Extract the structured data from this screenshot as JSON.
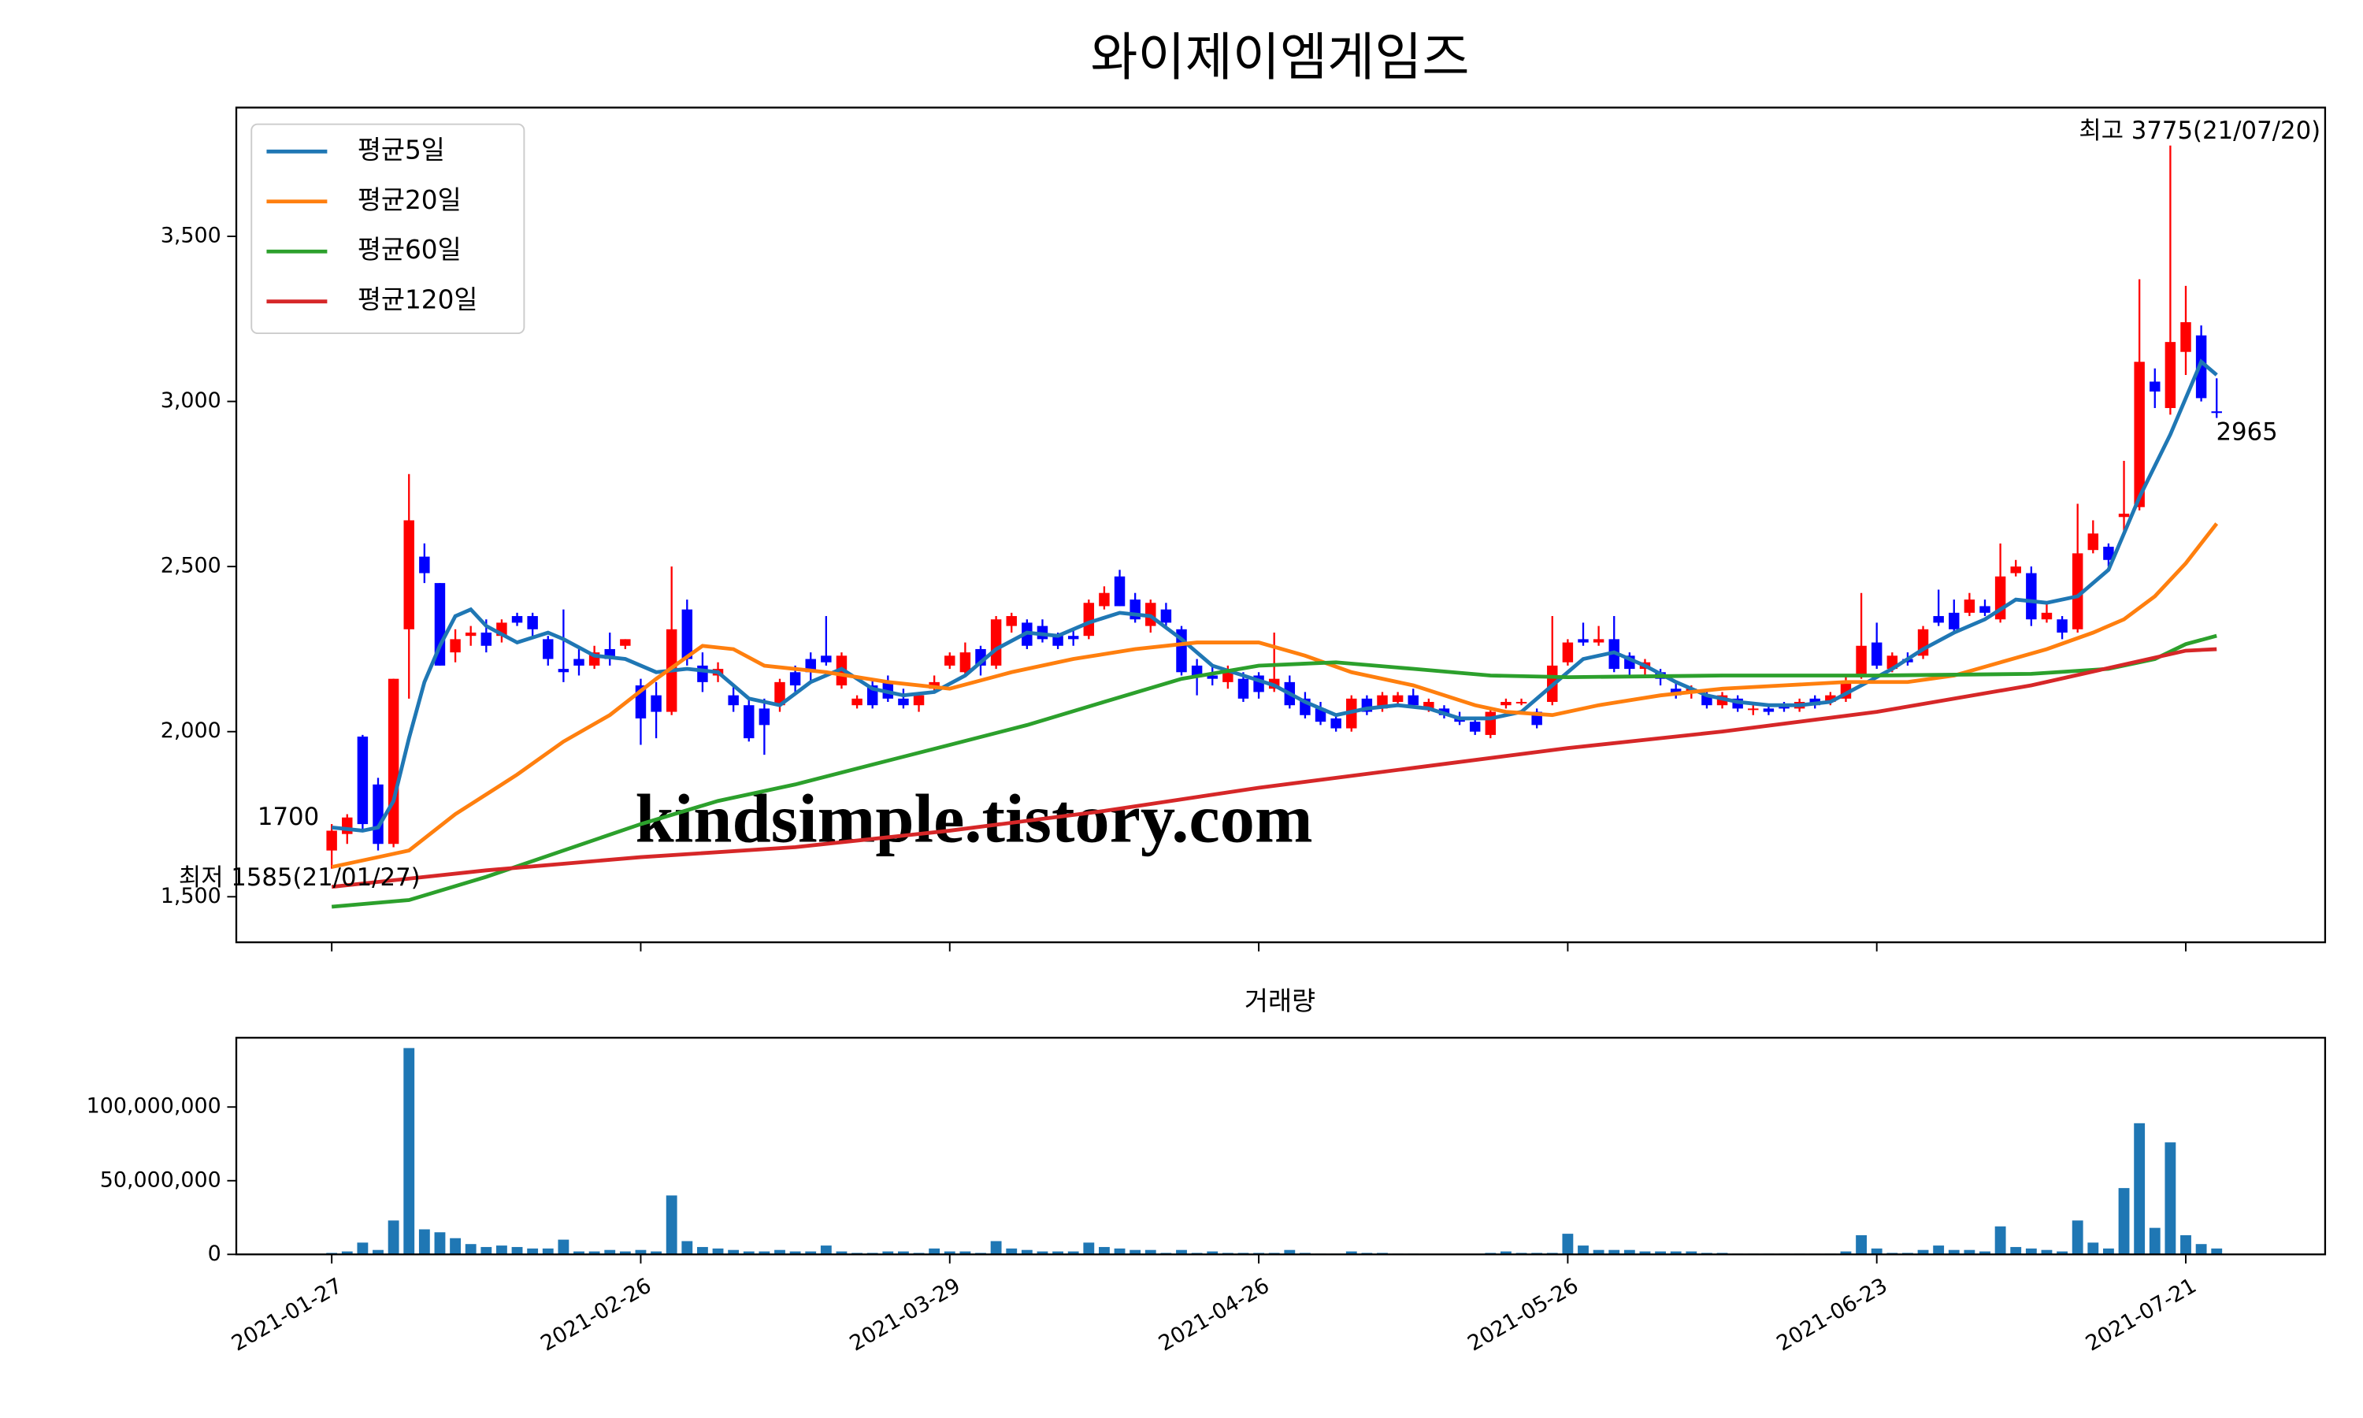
{
  "chart_data": [
    {
      "type": "candlestick",
      "title": "와이제이엠게임즈",
      "categories": [
        "2021-01-27",
        null,
        null,
        null,
        null,
        null,
        null,
        null,
        null,
        null,
        null,
        null,
        null,
        null,
        null,
        null,
        null,
        null,
        null,
        null,
        "2021-02-26",
        null,
        null,
        null,
        null,
        null,
        null,
        null,
        null,
        null,
        null,
        null,
        null,
        null,
        null,
        null,
        null,
        null,
        null,
        null,
        "2021-03-29",
        null,
        null,
        null,
        null,
        null,
        null,
        null,
        null,
        null,
        null,
        null,
        null,
        null,
        null,
        null,
        null,
        null,
        null,
        null,
        "2021-04-26",
        null,
        null,
        null,
        null,
        null,
        null,
        null,
        null,
        null,
        null,
        null,
        null,
        null,
        null,
        null,
        null,
        null,
        null,
        null,
        "2021-05-26",
        null,
        null,
        null,
        null,
        null,
        null,
        null,
        null,
        null,
        null,
        null,
        null,
        null,
        null,
        null,
        null,
        null,
        null,
        null,
        "2021-06-23",
        null,
        null,
        null,
        null,
        null,
        null,
        null,
        null,
        null,
        null,
        null,
        null,
        null,
        null,
        null,
        null,
        null,
        null,
        null,
        "2021-07-21",
        null,
        null
      ],
      "open": [
        1640,
        1690,
        1985,
        1840,
        1660,
        2310,
        2530,
        2450,
        2240,
        2290,
        2300,
        2290,
        2350,
        2350,
        2280,
        2190,
        2220,
        2200,
        2250,
        2260,
        2140,
        2110,
        2060,
        2370,
        2200,
        2170,
        2110,
        2080,
        2070,
        2080,
        2180,
        2220,
        2230,
        2140,
        2080,
        2140,
        2150,
        2100,
        2080,
        2130,
        2200,
        2180,
        2250,
        2200,
        2320,
        2330,
        2320,
        2290,
        2290,
        2290,
        2380,
        2470,
        2400,
        2320,
        2370,
        2310,
        2200,
        2170,
        2150,
        2160,
        2170,
        2130,
        2150,
        2100,
        2070,
        2040,
        2010,
        2100,
        2070,
        2090,
        2110,
        2070,
        2070,
        2040,
        2030,
        1990,
        2080,
        2090,
        2060,
        2090,
        2210,
        2280,
        2270,
        2280,
        2230,
        2190,
        2180,
        2130,
        2120,
        2110,
        2080,
        2100,
        2070,
        2070,
        2080,
        2070,
        2100,
        2090,
        2100,
        2170,
        2270,
        2190,
        2220,
        2230,
        2350,
        2360,
        2360,
        2380,
        2340,
        2480,
        2480,
        2340,
        2340,
        2310,
        2550,
        2560,
        2650,
        2680,
        3060,
        2980,
        3150,
        3200,
        2970
      ],
      "high": [
        1720,
        1750,
        1990,
        1860,
        2160,
        2780,
        2570,
        2450,
        2310,
        2320,
        2340,
        2340,
        2360,
        2360,
        2290,
        2370,
        2250,
        2260,
        2300,
        2280,
        2160,
        2150,
        2500,
        2400,
        2240,
        2210,
        2140,
        2100,
        2100,
        2160,
        2200,
        2240,
        2350,
        2240,
        2110,
        2160,
        2170,
        2130,
        2120,
        2170,
        2240,
        2270,
        2260,
        2350,
        2360,
        2340,
        2340,
        2300,
        2310,
        2400,
        2440,
        2490,
        2420,
        2400,
        2390,
        2320,
        2220,
        2200,
        2200,
        2180,
        2180,
        2300,
        2170,
        2120,
        2090,
        2050,
        2110,
        2110,
        2120,
        2120,
        2130,
        2100,
        2080,
        2060,
        2040,
        2070,
        2100,
        2100,
        2070,
        2350,
        2280,
        2330,
        2320,
        2350,
        2240,
        2220,
        2190,
        2150,
        2140,
        2120,
        2120,
        2110,
        2080,
        2080,
        2090,
        2100,
        2110,
        2120,
        2170,
        2420,
        2330,
        2240,
        2240,
        2320,
        2430,
        2400,
        2420,
        2400,
        2570,
        2520,
        2500,
        2390,
        2350,
        2690,
        2640,
        2570,
        2820,
        3370,
        3100,
        3775,
        3350,
        3230,
        3070
      ],
      "low": [
        1585,
        1660,
        1700,
        1640,
        1650,
        2100,
        2450,
        2200,
        2210,
        2260,
        2240,
        2270,
        2320,
        2290,
        2200,
        2150,
        2170,
        2190,
        2200,
        2250,
        1960,
        1980,
        2050,
        2200,
        2120,
        2150,
        2060,
        1970,
        1930,
        2060,
        2120,
        2150,
        2200,
        2130,
        2070,
        2070,
        2090,
        2070,
        2060,
        2120,
        2190,
        2170,
        2170,
        2190,
        2300,
        2250,
        2270,
        2250,
        2260,
        2280,
        2370,
        2380,
        2330,
        2300,
        2320,
        2170,
        2110,
        2140,
        2130,
        2090,
        2100,
        2120,
        2070,
        2040,
        2020,
        2000,
        2000,
        2050,
        2060,
        2080,
        2070,
        2060,
        2040,
        2020,
        1990,
        1980,
        2070,
        2080,
        2010,
        2080,
        2200,
        2260,
        2260,
        2180,
        2170,
        2170,
        2140,
        2100,
        2100,
        2070,
        2070,
        2060,
        2050,
        2050,
        2060,
        2060,
        2070,
        2080,
        2090,
        2160,
        2190,
        2180,
        2200,
        2220,
        2320,
        2300,
        2350,
        2350,
        2330,
        2470,
        2320,
        2330,
        2280,
        2300,
        2540,
        2500,
        2600,
        2670,
        2980,
        2960,
        3080,
        3000,
        2950
      ],
      "close": [
        1700,
        1740,
        1720,
        1660,
        2160,
        2640,
        2480,
        2200,
        2280,
        2300,
        2260,
        2330,
        2330,
        2310,
        2220,
        2180,
        2200,
        2240,
        2220,
        2280,
        2040,
        2060,
        2310,
        2220,
        2150,
        2190,
        2080,
        1980,
        2020,
        2150,
        2140,
        2180,
        2210,
        2230,
        2100,
        2080,
        2100,
        2080,
        2110,
        2150,
        2230,
        2240,
        2200,
        2340,
        2350,
        2260,
        2280,
        2260,
        2280,
        2390,
        2420,
        2380,
        2340,
        2390,
        2330,
        2180,
        2170,
        2160,
        2190,
        2100,
        2120,
        2160,
        2080,
        2050,
        2030,
        2010,
        2100,
        2060,
        2110,
        2110,
        2080,
        2090,
        2050,
        2030,
        2000,
        2060,
        2090,
        2090,
        2020,
        2200,
        2270,
        2270,
        2280,
        2190,
        2190,
        2210,
        2160,
        2110,
        2130,
        2080,
        2110,
        2070,
        2070,
        2060,
        2070,
        2090,
        2080,
        2110,
        2150,
        2260,
        2200,
        2230,
        2210,
        2310,
        2330,
        2310,
        2400,
        2360,
        2470,
        2500,
        2340,
        2360,
        2300,
        2540,
        2600,
        2520,
        2660,
        3120,
        3030,
        3180,
        3240,
        3010,
        2965
      ],
      "up_color": "red",
      "down_color": "blue",
      "series": [
        {
          "name": "평균5일",
          "color": "#1f77b4",
          "x": [
            0,
            2,
            3,
            4,
            5,
            6,
            7,
            8,
            9,
            10,
            12,
            14,
            15,
            17,
            19,
            21,
            23,
            25,
            27,
            29,
            31,
            33,
            35,
            37,
            39,
            41,
            43,
            45,
            47,
            49,
            51,
            53,
            55,
            57,
            59,
            61,
            63,
            65,
            67,
            69,
            71,
            73,
            75,
            77,
            79,
            81,
            83,
            85,
            87,
            89,
            91,
            93,
            95,
            97,
            99,
            101,
            103,
            105,
            107,
            109,
            111,
            113,
            115,
            117,
            119,
            121,
            122
          ],
          "values": [
            1710,
            1700,
            1710,
            1790,
            1980,
            2150,
            2260,
            2350,
            2370,
            2320,
            2270,
            2300,
            2280,
            2230,
            2220,
            2180,
            2190,
            2180,
            2100,
            2080,
            2150,
            2190,
            2130,
            2110,
            2120,
            2170,
            2250,
            2300,
            2290,
            2330,
            2360,
            2350,
            2280,
            2200,
            2170,
            2140,
            2090,
            2050,
            2070,
            2080,
            2070,
            2040,
            2040,
            2060,
            2140,
            2220,
            2240,
            2200,
            2150,
            2110,
            2090,
            2080,
            2080,
            2090,
            2140,
            2190,
            2250,
            2300,
            2340,
            2400,
            2390,
            2410,
            2490,
            2710,
            2900,
            3120,
            3080
          ]
        },
        {
          "name": "평균20일",
          "color": "#ff7f0e",
          "x": [
            0,
            3,
            5,
            8,
            10,
            12,
            15,
            18,
            21,
            24,
            26,
            28,
            32,
            36,
            40,
            44,
            48,
            52,
            56,
            60,
            63,
            66,
            70,
            74,
            76,
            79,
            82,
            86,
            90,
            94,
            98,
            102,
            105,
            108,
            111,
            114,
            116,
            118,
            120,
            122
          ],
          "values": [
            1590,
            1620,
            1640,
            1750,
            1810,
            1870,
            1970,
            2050,
            2160,
            2260,
            2250,
            2200,
            2180,
            2150,
            2130,
            2180,
            2220,
            2250,
            2270,
            2270,
            2230,
            2180,
            2140,
            2080,
            2060,
            2050,
            2080,
            2110,
            2130,
            2140,
            2150,
            2150,
            2170,
            2210,
            2250,
            2300,
            2340,
            2410,
            2510,
            2630
          ]
        },
        {
          "name": "평균60일",
          "color": "#2ca02c",
          "x": [
            0,
            5,
            10,
            15,
            20,
            25,
            30,
            35,
            40,
            45,
            50,
            55,
            60,
            65,
            70,
            75,
            80,
            90,
            100,
            110,
            115,
            118,
            120,
            122
          ],
          "values": [
            1470,
            1490,
            1560,
            1640,
            1720,
            1790,
            1840,
            1900,
            1960,
            2020,
            2090,
            2160,
            2200,
            2210,
            2190,
            2170,
            2165,
            2170,
            2170,
            2175,
            2190,
            2220,
            2265,
            2290
          ]
        },
        {
          "name": "평균120일",
          "color": "#d62728",
          "x": [
            0,
            10,
            20,
            30,
            40,
            50,
            60,
            70,
            80,
            90,
            100,
            110,
            120,
            122
          ],
          "values": [
            1530,
            1580,
            1620,
            1650,
            1700,
            1760,
            1830,
            1890,
            1950,
            2000,
            2060,
            2140,
            2245,
            2250
          ]
        }
      ],
      "annotations": [
        {
          "text": "최고 3775(21/07/20)",
          "color": "red"
        },
        {
          "text": "최저 1585(21/01/27)",
          "color": "blue"
        },
        {
          "text": "1700",
          "color": "black"
        },
        {
          "text": "2965",
          "color": "black"
        }
      ],
      "watermark": {
        "text": "kindsimple.tistory.com",
        "color": "#e2a2ef"
      },
      "ylim": [
        1362,
        3890
      ],
      "yticks": [
        {
          "value": 1500,
          "label": "1,500"
        },
        {
          "value": 2000,
          "label": "2,000"
        },
        {
          "value": 2500,
          "label": "2,500"
        },
        {
          "value": 3000,
          "label": "3,000"
        },
        {
          "value": 3500,
          "label": "3,500"
        }
      ],
      "legend": "upper left",
      "grid": false
    },
    {
      "type": "bar",
      "title": "거래량",
      "color": "#1f77b4",
      "values": [
        1000000,
        2000000,
        8000000,
        3000000,
        23000000,
        140000000,
        17000000,
        15000000,
        11000000,
        7000000,
        5000000,
        6000000,
        5000000,
        4000000,
        4000000,
        10000000,
        2000000,
        2000000,
        3000000,
        2000000,
        3000000,
        2000000,
        40000000,
        9000000,
        5000000,
        4000000,
        3000000,
        2000000,
        2000000,
        3000000,
        2000000,
        2000000,
        6000000,
        2000000,
        1000000,
        1000000,
        2000000,
        2000000,
        1000000,
        4000000,
        2000000,
        2000000,
        1000000,
        9000000,
        4000000,
        3000000,
        2000000,
        2000000,
        2000000,
        8000000,
        5000000,
        4000000,
        3000000,
        3000000,
        1000000,
        3000000,
        1000000,
        2000000,
        1000000,
        1000000,
        1000000,
        1000000,
        3000000,
        1000000,
        500000,
        500000,
        2000000,
        1000000,
        1000000,
        500000,
        500000,
        300000,
        300000,
        300000,
        300000,
        1000000,
        2000000,
        1000000,
        1000000,
        1000000,
        14000000,
        6000000,
        3000000,
        3000000,
        3000000,
        2000000,
        2000000,
        2000000,
        2000000,
        1000000,
        1000000,
        500000,
        500000,
        500000,
        500000,
        500000,
        500000,
        500000,
        2000000,
        13000000,
        4000000,
        1000000,
        1000000,
        3000000,
        6000000,
        3000000,
        3000000,
        2000000,
        19000000,
        5000000,
        4000000,
        3000000,
        2000000,
        23000000,
        8000000,
        4000000,
        45000000,
        89000000,
        18000000,
        76000000,
        13000000,
        7000000,
        4000000
      ],
      "ylim": [
        0,
        147000000
      ],
      "yticks": [
        0,
        {
          "value": 50000000,
          "label": "50,000,000"
        },
        {
          "value": 100000000,
          "label": "100,000,000"
        }
      ]
    }
  ]
}
